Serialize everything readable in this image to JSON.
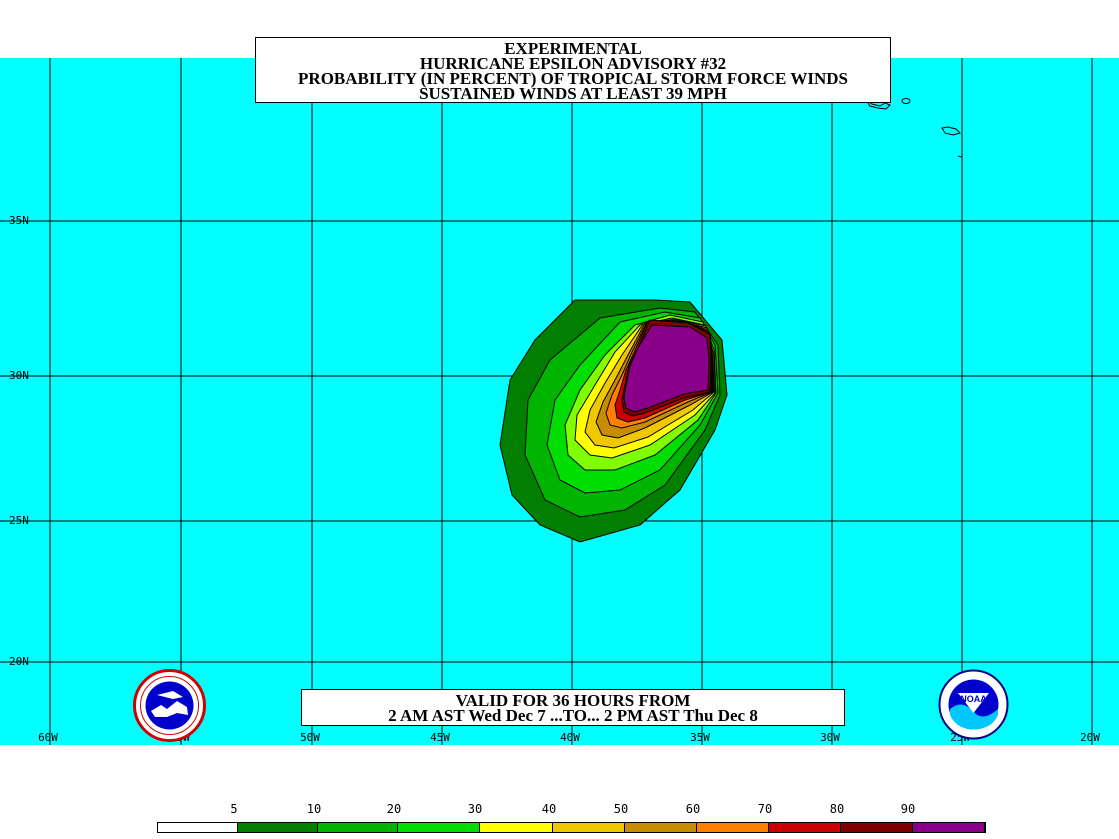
{
  "title": {
    "line1": "EXPERIMENTAL",
    "line2": "HURRICANE EPSILON ADVISORY #32",
    "line3": "PROBABILITY (IN PERCENT) OF TROPICAL STORM FORCE WINDS",
    "line4": "SUSTAINED WINDS AT LEAST 39 MPH"
  },
  "valid": {
    "line1": "VALID FOR 36 HOURS FROM",
    "line2": "2 AM AST Wed Dec 7 ...TO... 2 PM AST Thu Dec 8"
  },
  "longitude_labels": [
    "60W",
    "55W",
    "50W",
    "45W",
    "40W",
    "35W",
    "30W",
    "25W",
    "20W"
  ],
  "latitude_labels": [
    "35N",
    "30N",
    "25N",
    "20N"
  ],
  "legend": {
    "thresholds": [
      "5",
      "10",
      "20",
      "30",
      "40",
      "50",
      "60",
      "70",
      "80",
      "90"
    ],
    "colors": [
      "#ffffff",
      "#007f00",
      "#00b400",
      "#00dd00",
      "#7fff00",
      "#ffff00",
      "#f0c800",
      "#c88c00",
      "#ff7f00",
      "#cc0000",
      "#800000",
      "#8b008b"
    ]
  },
  "colors": {
    "ocean": "#00ffff",
    "grid": "#000000"
  },
  "logos": {
    "left": "nws-logo",
    "right": "noaa-logo",
    "right_text": "NOAA"
  }
}
